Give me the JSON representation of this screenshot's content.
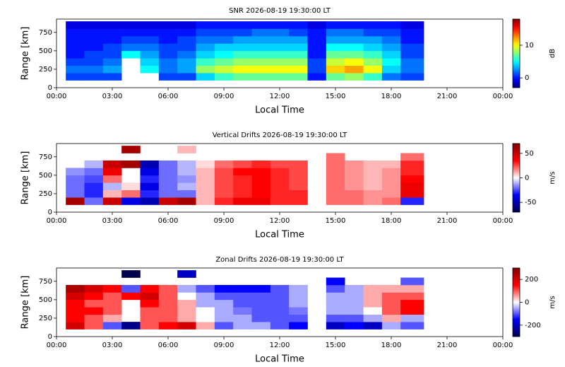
{
  "chart_data": [
    {
      "type": "heatmap",
      "title": "SNR 2026-08-19 19:30:00 LT",
      "xlabel": "Local Time",
      "ylabel": "Range [km]",
      "x_edges": [
        0.5,
        1.5,
        2.5,
        3.5,
        4.5,
        5.5,
        6.5,
        7.5,
        8.5,
        9.5,
        10.5,
        11.5,
        12.5,
        13.5,
        14.5,
        15.5,
        16.5,
        17.5,
        18.5,
        19.75
      ],
      "y_edges": [
        100,
        200,
        300,
        400,
        500,
        600,
        700,
        800,
        900
      ],
      "z": [
        [
          1,
          1,
          1,
          null,
          null,
          1,
          1,
          4,
          6,
          7,
          7,
          7,
          7,
          0,
          7,
          8,
          6,
          2,
          1
        ],
        [
          2,
          2,
          3,
          null,
          5,
          2,
          3,
          8,
          9,
          10,
          10,
          10,
          10,
          1,
          11,
          12,
          10,
          4,
          2
        ],
        [
          1,
          1,
          2,
          null,
          4,
          2,
          3,
          6,
          7,
          8,
          8,
          8,
          8,
          1,
          9,
          10,
          8,
          5,
          2
        ],
        [
          0,
          1,
          1,
          5,
          3,
          1,
          2,
          4,
          5,
          6,
          6,
          6,
          6,
          0,
          7,
          7,
          6,
          4,
          1
        ],
        [
          0,
          0,
          1,
          2,
          2,
          1,
          1,
          3,
          4,
          4,
          4,
          4,
          4,
          0,
          5,
          5,
          4,
          3,
          1
        ],
        [
          0,
          0,
          0,
          1,
          1,
          0,
          1,
          2,
          2,
          3,
          3,
          3,
          3,
          0,
          3,
          3,
          3,
          2,
          0
        ],
        [
          0,
          0,
          0,
          0,
          0,
          0,
          0,
          1,
          1,
          1,
          2,
          2,
          1,
          0,
          2,
          2,
          1,
          1,
          0
        ],
        [
          -1,
          -1,
          -1,
          -1,
          -1,
          -1,
          -1,
          0,
          0,
          0,
          0,
          0,
          0,
          -1,
          0,
          0,
          0,
          0,
          -1
        ]
      ],
      "xlim": [
        0,
        24
      ],
      "ylim": [
        0,
        930
      ],
      "xticks": [
        {
          "value": 0,
          "label": "00:00"
        },
        {
          "value": 3,
          "label": "03:00"
        },
        {
          "value": 6,
          "label": "06:00"
        },
        {
          "value": 9,
          "label": "09:00"
        },
        {
          "value": 12,
          "label": "12:00"
        },
        {
          "value": 15,
          "label": "15:00"
        },
        {
          "value": 18,
          "label": "18:00"
        },
        {
          "value": 21,
          "label": "21:00"
        },
        {
          "value": 24,
          "label": "00:00"
        }
      ],
      "yticks": [
        0,
        250,
        500,
        750
      ],
      "cmap": "jet",
      "clim": [
        -3,
        18
      ],
      "cticks": [
        0,
        10
      ],
      "clabel": "dB"
    },
    {
      "type": "heatmap",
      "title": "Vertical Drifts 2026-08-19 19:30:00 LT",
      "xlabel": "Local Time",
      "ylabel": "Range [km]",
      "x_edges": [
        0.5,
        1.5,
        2.5,
        3.5,
        4.5,
        5.5,
        6.5,
        7.5,
        8.5,
        9.5,
        10.5,
        11.5,
        12.5,
        13.5,
        14.5,
        15.5,
        16.5,
        17.5,
        18.5,
        19.75
      ],
      "y_edges": [
        100,
        200,
        300,
        400,
        500,
        600,
        700,
        800,
        900
      ],
      "z": [
        [
          60,
          -20,
          50,
          -40,
          -50,
          50,
          60,
          10,
          30,
          40,
          40,
          30,
          30,
          null,
          20,
          20,
          15,
          20,
          -30
        ],
        [
          -20,
          -30,
          10,
          20,
          -30,
          -20,
          -20,
          10,
          25,
          30,
          35,
          30,
          30,
          null,
          20,
          20,
          15,
          15,
          40
        ],
        [
          -20,
          -30,
          -10,
          5,
          -40,
          -20,
          -10,
          10,
          25,
          30,
          35,
          30,
          25,
          null,
          20,
          15,
          10,
          15,
          40
        ],
        [
          -20,
          -25,
          20,
          null,
          -30,
          -20,
          -15,
          10,
          25,
          30,
          35,
          30,
          25,
          null,
          20,
          15,
          10,
          15,
          35
        ],
        [
          -15,
          -20,
          40,
          null,
          -40,
          -20,
          -10,
          10,
          25,
          35,
          35,
          30,
          25,
          null,
          20,
          15,
          10,
          15,
          30
        ],
        [
          null,
          -10,
          50,
          60,
          -50,
          -20,
          -10,
          5,
          20,
          25,
          30,
          25,
          25,
          null,
          20,
          15,
          10,
          10,
          30
        ],
        [
          null,
          null,
          null,
          null,
          null,
          null,
          null,
          null,
          null,
          null,
          null,
          null,
          null,
          null,
          20,
          null,
          null,
          null,
          20
        ],
        [
          null,
          null,
          null,
          60,
          null,
          null,
          10,
          null,
          null,
          null,
          null,
          null,
          null,
          null,
          null,
          null,
          null,
          null,
          null
        ]
      ],
      "xlim": [
        0,
        24
      ],
      "ylim": [
        0,
        930
      ],
      "xticks": [
        {
          "value": 0,
          "label": "00:00"
        },
        {
          "value": 3,
          "label": "03:00"
        },
        {
          "value": 6,
          "label": "06:00"
        },
        {
          "value": 9,
          "label": "09:00"
        },
        {
          "value": 12,
          "label": "12:00"
        },
        {
          "value": 15,
          "label": "15:00"
        },
        {
          "value": 18,
          "label": "18:00"
        },
        {
          "value": 21,
          "label": "21:00"
        },
        {
          "value": 24,
          "label": "00:00"
        }
      ],
      "yticks": [
        0,
        250,
        500,
        750
      ],
      "cmap": "seismic",
      "clim": [
        -70,
        70
      ],
      "cticks": [
        -50,
        0,
        50
      ],
      "clabel": "m/s"
    },
    {
      "type": "heatmap",
      "title": "Zonal Drifts 2026-08-19 19:30:00 LT",
      "xlabel": "Local Time",
      "ylabel": "Range [km]",
      "x_edges": [
        0.5,
        1.5,
        2.5,
        3.5,
        4.5,
        5.5,
        6.5,
        7.5,
        8.5,
        9.5,
        10.5,
        11.5,
        12.5,
        13.5,
        14.5,
        15.5,
        16.5,
        17.5,
        18.5,
        19.75
      ],
      "y_edges": [
        100,
        200,
        300,
        400,
        500,
        600,
        700,
        800,
        900
      ],
      "z": [
        [
          200,
          100,
          -100,
          -250,
          100,
          150,
          200,
          50,
          -100,
          -50,
          -50,
          -100,
          -150,
          null,
          -200,
          -150,
          -200,
          -50,
          -100
        ],
        [
          150,
          100,
          50,
          null,
          100,
          100,
          50,
          0,
          -50,
          -50,
          -100,
          -100,
          -100,
          null,
          -100,
          -100,
          -50,
          50,
          -50
        ],
        [
          150,
          150,
          100,
          null,
          100,
          100,
          50,
          0,
          -50,
          -80,
          -100,
          -100,
          -80,
          null,
          -50,
          -50,
          0,
          100,
          150
        ],
        [
          150,
          100,
          100,
          null,
          150,
          100,
          50,
          -50,
          -50,
          -100,
          -100,
          -100,
          -50,
          null,
          -50,
          -50,
          50,
          100,
          150
        ],
        [
          200,
          150,
          100,
          150,
          200,
          100,
          0,
          -50,
          -100,
          -100,
          -100,
          -100,
          -50,
          null,
          -50,
          -50,
          50,
          100,
          100
        ],
        [
          250,
          200,
          150,
          -100,
          150,
          100,
          -50,
          -100,
          -150,
          -150,
          -150,
          -100,
          -50,
          null,
          -100,
          -50,
          50,
          50,
          50
        ],
        [
          null,
          null,
          null,
          null,
          null,
          null,
          null,
          null,
          null,
          null,
          null,
          null,
          null,
          null,
          -150,
          null,
          null,
          null,
          -100
        ],
        [
          null,
          null,
          null,
          -300,
          null,
          null,
          -200,
          null,
          null,
          null,
          null,
          null,
          null,
          null,
          null,
          null,
          null,
          null,
          null
        ]
      ],
      "xlim": [
        0,
        24
      ],
      "ylim": [
        0,
        930
      ],
      "xticks": [
        {
          "value": 0,
          "label": "00:00"
        },
        {
          "value": 3,
          "label": "03:00"
        },
        {
          "value": 6,
          "label": "06:00"
        },
        {
          "value": 9,
          "label": "09:00"
        },
        {
          "value": 12,
          "label": "12:00"
        },
        {
          "value": 15,
          "label": "15:00"
        },
        {
          "value": 18,
          "label": "18:00"
        },
        {
          "value": 21,
          "label": "21:00"
        },
        {
          "value": 24,
          "label": "00:00"
        }
      ],
      "yticks": [
        0,
        250,
        500,
        750
      ],
      "cmap": "seismic",
      "clim": [
        -300,
        300
      ],
      "cticks": [
        -200,
        0,
        200
      ],
      "clabel": "m/s"
    }
  ]
}
